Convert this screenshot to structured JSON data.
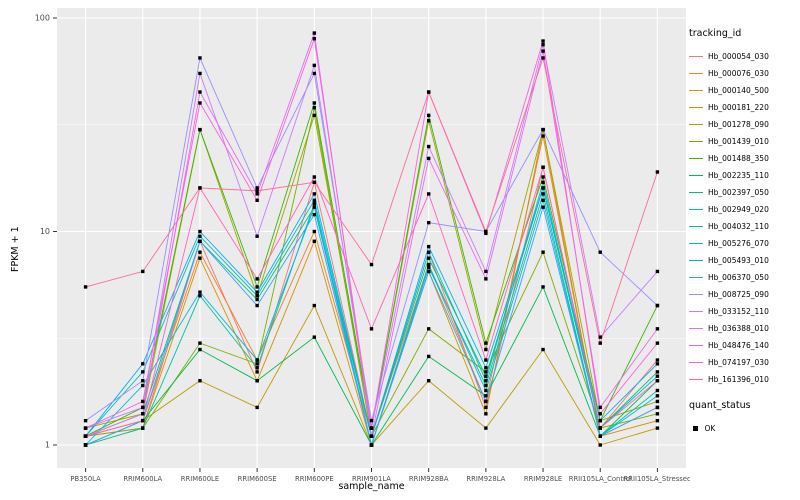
{
  "chart_data": {
    "type": "line",
    "title": "",
    "xlabel": "sample_name",
    "ylabel": "FPKM + 1",
    "yscale": "log10",
    "ylim": [
      1,
      100
    ],
    "y_ticks": [
      1,
      10,
      100
    ],
    "panel_bg": "#EBEBEB",
    "grid_color": "#FFFFFF",
    "point_color": "#000000",
    "legend_position": "right",
    "categories": [
      "PB350LA",
      "RRIM600LA",
      "RRIM600LE",
      "RRIM600SE",
      "RRIM600PE",
      "RRIM901LA",
      "RRIM928BA",
      "RRIM928LA",
      "RRIM928LE",
      "RRII105LA_Control",
      "RRII105LA_Stressed"
    ],
    "series": [
      {
        "name": "Hb_000054_030",
        "color": "#F8766D",
        "values": [
          1.1,
          1.2,
          9,
          2.2,
          17,
          1.1,
          8,
          1.5,
          20,
          1.2,
          2.5
        ]
      },
      {
        "name": "Hb_000076_030",
        "color": "#EA8331",
        "values": [
          1.1,
          1.3,
          8,
          2.5,
          10,
          1.1,
          7,
          1.6,
          28,
          1.1,
          1.5
        ]
      },
      {
        "name": "Hb_000140_500",
        "color": "#D89000",
        "values": [
          1.0,
          1.2,
          7.5,
          2.0,
          9,
          1.0,
          6.5,
          1.4,
          30,
          1.1,
          1.3
        ]
      },
      {
        "name": "Hb_000181_220",
        "color": "#C09B00",
        "values": [
          1.1,
          1.3,
          2.0,
          1.5,
          4.5,
          1.0,
          2.0,
          1.2,
          2.8,
          1.0,
          1.2
        ]
      },
      {
        "name": "Hb_001278_090",
        "color": "#A3A500",
        "values": [
          1.2,
          1.4,
          30,
          5,
          35,
          1.2,
          33,
          2.8,
          30,
          1.3,
          1.6
        ]
      },
      {
        "name": "Hb_001439_010",
        "color": "#7CAE00",
        "values": [
          1.1,
          1.2,
          3.0,
          2.4,
          38,
          1.1,
          3.5,
          2.2,
          8,
          1.2,
          1.4
        ]
      },
      {
        "name": "Hb_001488_350",
        "color": "#39B600",
        "values": [
          1.1,
          1.5,
          30,
          5.5,
          40,
          1.2,
          35,
          3.0,
          18,
          1.3,
          4.5
        ]
      },
      {
        "name": "Hb_002235_110",
        "color": "#00BB4E",
        "values": [
          1.0,
          1.3,
          2.8,
          2.0,
          3.2,
          1.0,
          2.6,
          1.7,
          5.5,
          1.1,
          2.0
        ]
      },
      {
        "name": "Hb_002397_050",
        "color": "#00BF7D",
        "values": [
          1.1,
          1.4,
          9,
          4.8,
          13,
          1.1,
          7.5,
          2.1,
          16,
          1.2,
          2.2
        ]
      },
      {
        "name": "Hb_002949_020",
        "color": "#00C1A3",
        "values": [
          1.0,
          1.2,
          5,
          2.3,
          13.5,
          1.0,
          6.8,
          1.9,
          15,
          1.1,
          1.8
        ]
      },
      {
        "name": "Hb_004032_110",
        "color": "#00BFC4",
        "values": [
          1.1,
          2.2,
          9.5,
          5,
          14,
          1.1,
          8,
          2.0,
          17,
          1.2,
          2.1
        ]
      },
      {
        "name": "Hb_005276_070",
        "color": "#00BAE0",
        "values": [
          1.0,
          1.9,
          5.2,
          2.5,
          13,
          1.0,
          7,
          1.8,
          14,
          1.1,
          1.7
        ]
      },
      {
        "name": "Hb_005493_010",
        "color": "#00B0F6",
        "values": [
          1.1,
          2.4,
          10,
          5.2,
          15,
          1.1,
          8.5,
          2.3,
          16,
          1.3,
          2.4
        ]
      },
      {
        "name": "Hb_006370_050",
        "color": "#35A2FF",
        "values": [
          1.0,
          1.3,
          9,
          4.5,
          12,
          1.0,
          6.5,
          1.6,
          13,
          1.1,
          1.5
        ]
      },
      {
        "name": "Hb_008725_090",
        "color": "#9590FF",
        "values": [
          1.3,
          2.0,
          65,
          16,
          55,
          1.3,
          11,
          10,
          30,
          8,
          4.5
        ]
      },
      {
        "name": "Hb_033152_110",
        "color": "#C77CFF",
        "values": [
          1.2,
          1.5,
          55,
          9.5,
          60,
          1.2,
          25,
          6.5,
          75,
          3.2,
          6.5
        ]
      },
      {
        "name": "Hb_036388_010",
        "color": "#E76BF3",
        "values": [
          1.1,
          1.4,
          45,
          15,
          85,
          1.1,
          22,
          6.0,
          70,
          1.5,
          3.5
        ]
      },
      {
        "name": "Hb_048476_140",
        "color": "#FA62DB",
        "values": [
          1.2,
          1.6,
          40,
          14,
          80,
          1.2,
          45,
          9.8,
          78,
          1.4,
          3.0
        ]
      },
      {
        "name": "Hb_074197_030",
        "color": "#FF62BC",
        "values": [
          1.1,
          1.3,
          16,
          6,
          18,
          3.5,
          15,
          2.5,
          20,
          1.2,
          2.0
        ]
      },
      {
        "name": "Hb_161396_010",
        "color": "#FF6A98",
        "values": [
          5.5,
          6.5,
          16,
          15.5,
          17,
          7,
          45,
          10,
          65,
          3.0,
          19
        ]
      }
    ],
    "legend": {
      "tracking_title": "tracking_id",
      "quant_title": "quant_status",
      "quant_items": [
        {
          "label": "OK",
          "marker": "square"
        }
      ]
    }
  }
}
